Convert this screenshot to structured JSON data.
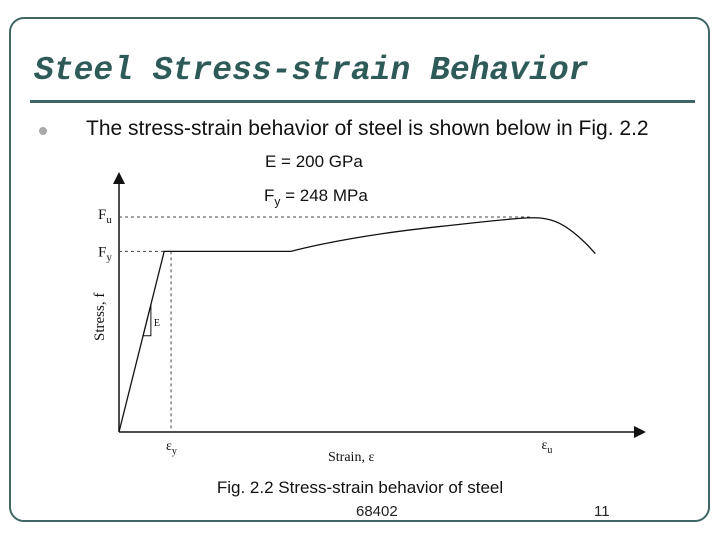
{
  "slide": {
    "title": "Steel Stress-strain Behavior",
    "bullet_text": "The stress-strain behavior of steel is shown below in Fig. 2.2",
    "modulus_label": "E = 200 GPa",
    "yield_label_prefix": "F",
    "yield_label_sub": "y",
    "yield_label_value": " = 248 MPa",
    "caption_prefix": "Fig. 2.2",
    "caption_text": " Stress-strain behavior of steel",
    "footer_code": "68402",
    "page_number": "11",
    "colors": {
      "title": "#2e5a58",
      "rule": "#3f6664",
      "frame": "#3f6664",
      "bullet": "#a9a9a9"
    }
  },
  "chart_data": {
    "type": "line",
    "title": "",
    "xlabel": "Strain, ε",
    "ylabel": "Stress, f",
    "y_ticks": [
      {
        "main": "F",
        "sub": "u",
        "level": "ultimate"
      },
      {
        "main": "F",
        "sub": "y",
        "level": "yield"
      }
    ],
    "x_ticks": [
      {
        "main": "ε",
        "sub": "y",
        "level": "yield"
      },
      {
        "main": "ε",
        "sub": "u",
        "level": "ultimate"
      }
    ],
    "slope_label": "E",
    "curve": [
      {
        "strain": 0.0,
        "stress": 0.0
      },
      {
        "strain": 0.092,
        "stress": 0.84
      },
      {
        "strain": 0.16,
        "stress": 0.84
      },
      {
        "strain": 0.35,
        "stress": 0.84
      },
      {
        "strain": 0.4,
        "stress": 0.87
      },
      {
        "strain": 0.55,
        "stress": 0.93
      },
      {
        "strain": 0.75,
        "stress": 0.98
      },
      {
        "strain": 0.84,
        "stress": 1.0
      },
      {
        "strain": 0.88,
        "stress": 0.99
      },
      {
        "strain": 0.915,
        "stress": 0.95
      },
      {
        "strain": 0.95,
        "stress": 0.88
      },
      {
        "strain": 0.97,
        "stress": 0.83
      }
    ],
    "levels": {
      "yield_stress": 0.84,
      "ultimate_stress": 1.0,
      "yield_strain": 0.092,
      "ultimate_strain": 0.84
    },
    "axis_ranges": {
      "x": [
        0,
        1.0
      ],
      "y": [
        0,
        1.0
      ]
    },
    "grid": false
  }
}
